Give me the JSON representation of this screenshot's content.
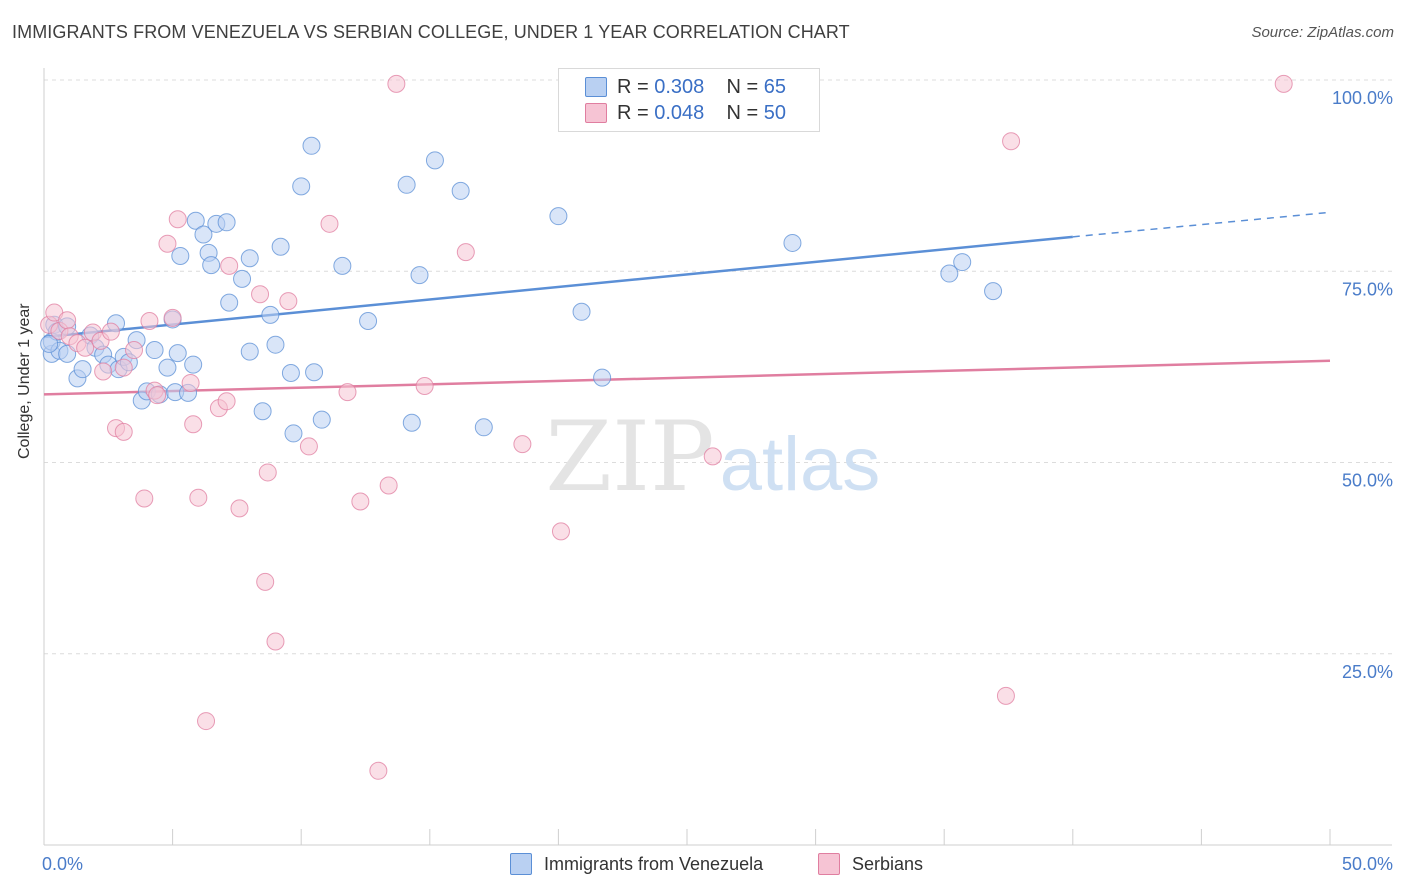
{
  "header": {
    "title": "IMMIGRANTS FROM VENEZUELA VS SERBIAN COLLEGE, UNDER 1 YEAR CORRELATION CHART",
    "source": "Source: ZipAtlas.com"
  },
  "legend": {
    "rows": [
      {
        "r_label": "R =",
        "r_value": "0.308",
        "n_label": "N =",
        "n_value": "65",
        "color": "#5b8fd6",
        "fill": "#b9d0f2"
      },
      {
        "r_label": "R =",
        "r_value": "0.048",
        "n_label": "N =",
        "n_value": "50",
        "color": "#e07ea0",
        "fill": "#f6c4d4"
      }
    ]
  },
  "bottom_legend": {
    "items": [
      {
        "label": "Immigrants from Venezuela",
        "fill": "#b9d0f2",
        "stroke": "#5b8fd6"
      },
      {
        "label": "Serbians",
        "fill": "#f6c4d4",
        "stroke": "#e07ea0"
      }
    ]
  },
  "watermark": {
    "zip": "ZIP",
    "atlas": "atlas"
  },
  "chart_data": {
    "type": "scatter",
    "title": "IMMIGRANTS FROM VENEZUELA VS SERBIAN COLLEGE, UNDER 1 YEAR CORRELATION CHART",
    "ylabel": "College, Under 1 year",
    "xlabel": "",
    "xlim": [
      0,
      50
    ],
    "ylim": [
      0,
      100
    ],
    "x_tick_labels": [
      "0.0%",
      "50.0%"
    ],
    "y_tick_labels": [
      "100.0%",
      "75.0%",
      "50.0%",
      "25.0%"
    ],
    "y_ticks": [
      100,
      75,
      50,
      25
    ],
    "grid": true,
    "legend_position": "top-center",
    "series": [
      {
        "name": "Immigrants from Venezuela",
        "color": "#5b8fd6",
        "fill": "#b9d0f2",
        "trend": {
          "x0": 0,
          "y0": 66.4,
          "x1": 40,
          "y1": 79.5,
          "dash_to_x": 50,
          "dash_to_y": 82.7
        },
        "points": [
          [
            0.3,
            64.2
          ],
          [
            0.3,
            65.8
          ],
          [
            0.4,
            68.0
          ],
          [
            0.5,
            67.1
          ],
          [
            0.6,
            64.6
          ],
          [
            0.9,
            67.8
          ],
          [
            0.9,
            64.2
          ],
          [
            1.3,
            61.0
          ],
          [
            1.5,
            62.2
          ],
          [
            1.8,
            66.6
          ],
          [
            2.0,
            65.0
          ],
          [
            2.3,
            64.1
          ],
          [
            2.5,
            62.8
          ],
          [
            2.8,
            68.2
          ],
          [
            2.9,
            62.2
          ],
          [
            3.1,
            63.8
          ],
          [
            3.3,
            63.1
          ],
          [
            3.6,
            66.0
          ],
          [
            3.8,
            58.1
          ],
          [
            4.0,
            59.3
          ],
          [
            4.3,
            64.7
          ],
          [
            4.5,
            58.9
          ],
          [
            4.8,
            62.4
          ],
          [
            5.0,
            68.7
          ],
          [
            5.1,
            59.2
          ],
          [
            5.2,
            64.3
          ],
          [
            5.3,
            77.0
          ],
          [
            5.6,
            59.1
          ],
          [
            5.8,
            62.8
          ],
          [
            5.9,
            81.6
          ],
          [
            6.2,
            79.8
          ],
          [
            6.4,
            77.4
          ],
          [
            6.5,
            75.8
          ],
          [
            6.7,
            81.2
          ],
          [
            7.1,
            81.4
          ],
          [
            7.2,
            70.9
          ],
          [
            7.7,
            74.0
          ],
          [
            8.0,
            76.7
          ],
          [
            8.0,
            64.5
          ],
          [
            8.5,
            56.7
          ],
          [
            8.8,
            69.3
          ],
          [
            9.0,
            65.4
          ],
          [
            9.2,
            78.2
          ],
          [
            9.6,
            61.7
          ],
          [
            9.7,
            53.8
          ],
          [
            10.0,
            86.1
          ],
          [
            10.4,
            91.4
          ],
          [
            10.5,
            61.8
          ],
          [
            10.8,
            55.6
          ],
          [
            11.6,
            75.7
          ],
          [
            12.6,
            68.5
          ],
          [
            14.1,
            86.3
          ],
          [
            14.3,
            55.2
          ],
          [
            14.6,
            74.5
          ],
          [
            15.2,
            89.5
          ],
          [
            16.2,
            85.5
          ],
          [
            17.1,
            54.6
          ],
          [
            20.0,
            82.2
          ],
          [
            20.9,
            69.7
          ],
          [
            21.7,
            61.1
          ],
          [
            29.1,
            78.7
          ],
          [
            35.2,
            74.7
          ],
          [
            35.7,
            76.2
          ],
          [
            36.9,
            72.4
          ],
          [
            0.2,
            65.5
          ]
        ]
      },
      {
        "name": "Serbians",
        "color": "#e07ea0",
        "fill": "#f6c4d4",
        "trend": {
          "x0": 0,
          "y0": 58.9,
          "x1": 50,
          "y1": 63.3
        },
        "points": [
          [
            0.2,
            68.0
          ],
          [
            0.4,
            69.6
          ],
          [
            0.6,
            67.2
          ],
          [
            0.9,
            68.6
          ],
          [
            1.0,
            66.5
          ],
          [
            1.3,
            65.6
          ],
          [
            1.6,
            65.0
          ],
          [
            1.9,
            67.0
          ],
          [
            2.2,
            65.9
          ],
          [
            2.3,
            61.9
          ],
          [
            2.6,
            67.1
          ],
          [
            2.8,
            54.5
          ],
          [
            3.1,
            54.0
          ],
          [
            3.1,
            62.4
          ],
          [
            3.5,
            64.7
          ],
          [
            3.9,
            45.3
          ],
          [
            4.1,
            68.5
          ],
          [
            4.3,
            59.4
          ],
          [
            4.4,
            58.8
          ],
          [
            4.8,
            78.6
          ],
          [
            5.0,
            68.9
          ],
          [
            5.2,
            81.8
          ],
          [
            5.7,
            60.4
          ],
          [
            5.8,
            55.0
          ],
          [
            6.0,
            45.4
          ],
          [
            6.3,
            16.2
          ],
          [
            6.8,
            57.1
          ],
          [
            7.1,
            58.0
          ],
          [
            7.2,
            75.7
          ],
          [
            7.6,
            44.0
          ],
          [
            8.4,
            72.0
          ],
          [
            8.6,
            34.4
          ],
          [
            8.7,
            48.7
          ],
          [
            9.0,
            26.6
          ],
          [
            9.5,
            71.1
          ],
          [
            10.3,
            52.1
          ],
          [
            11.1,
            81.2
          ],
          [
            11.8,
            59.2
          ],
          [
            12.3,
            44.9
          ],
          [
            13.0,
            9.7
          ],
          [
            13.4,
            47.0
          ],
          [
            13.7,
            99.5
          ],
          [
            14.8,
            60.0
          ],
          [
            16.4,
            77.5
          ],
          [
            18.6,
            52.4
          ],
          [
            20.1,
            41.0
          ],
          [
            26.0,
            50.8
          ],
          [
            37.4,
            19.5
          ],
          [
            37.6,
            92.0
          ],
          [
            48.2,
            99.5
          ]
        ]
      }
    ]
  }
}
